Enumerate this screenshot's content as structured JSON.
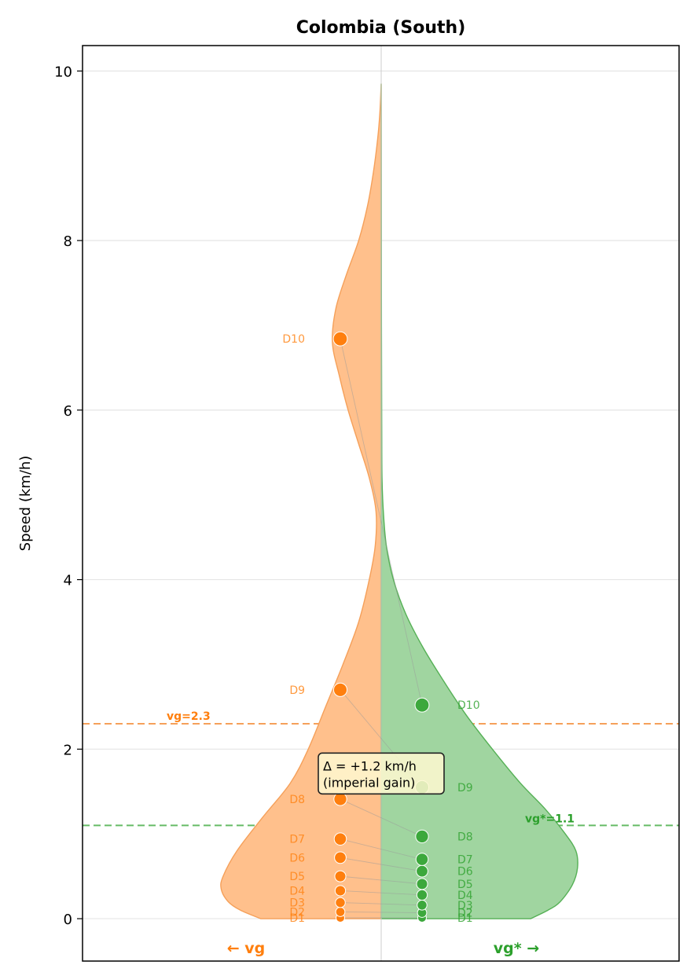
{
  "chart_data": {
    "type": "split-violin",
    "title": "Colombia (South)",
    "ylabel": "Speed (km/h)",
    "ylim": [
      -0.5,
      10.3
    ],
    "yticks": [
      0,
      2,
      4,
      6,
      8,
      10
    ],
    "grid": true,
    "left_side_label": "← vg",
    "right_side_label": "vg* →",
    "colors": {
      "vg": "#ff7f0e",
      "vg_fill": "#ffc08c",
      "vgstar": "#2ca02c",
      "vgstar_fill": "#a0d5a0",
      "vgstar_point": "#3ca83c"
    },
    "series": [
      {
        "name": "vg",
        "side": "left",
        "deciles": [
          {
            "label": "D1",
            "value": 0.01
          },
          {
            "label": "D2",
            "value": 0.08
          },
          {
            "label": "D3",
            "value": 0.19
          },
          {
            "label": "D4",
            "value": 0.33
          },
          {
            "label": "D5",
            "value": 0.5
          },
          {
            "label": "D6",
            "value": 0.72
          },
          {
            "label": "D7",
            "value": 0.94
          },
          {
            "label": "D8",
            "value": 1.41
          },
          {
            "label": "D9",
            "value": 2.7
          },
          {
            "label": "D10",
            "value": 6.84
          }
        ],
        "density": [
          [
            0.0,
            0.444
          ],
          [
            0.1,
            0.519
          ],
          [
            0.2,
            0.564
          ],
          [
            0.35,
            0.59
          ],
          [
            0.5,
            0.583
          ],
          [
            0.8,
            0.532
          ],
          [
            1.2,
            0.436
          ],
          [
            1.6,
            0.335
          ],
          [
            2.0,
            0.269
          ],
          [
            2.5,
            0.205
          ],
          [
            3.0,
            0.141
          ],
          [
            3.5,
            0.083
          ],
          [
            4.0,
            0.044
          ],
          [
            4.4,
            0.022
          ],
          [
            4.8,
            0.019
          ],
          [
            5.2,
            0.044
          ],
          [
            5.6,
            0.083
          ],
          [
            6.0,
            0.122
          ],
          [
            6.4,
            0.154
          ],
          [
            6.8,
            0.18
          ],
          [
            7.2,
            0.167
          ],
          [
            7.6,
            0.128
          ],
          [
            8.0,
            0.083
          ],
          [
            8.4,
            0.051
          ],
          [
            8.8,
            0.029
          ],
          [
            9.2,
            0.013
          ],
          [
            9.5,
            0.005
          ],
          [
            9.85,
            0.0
          ]
        ],
        "mean": 2.3,
        "mean_label": "vg=2.3"
      },
      {
        "name": "vg*",
        "side": "right",
        "deciles": [
          {
            "label": "D1",
            "value": 0.01
          },
          {
            "label": "D2",
            "value": 0.07
          },
          {
            "label": "D3",
            "value": 0.16
          },
          {
            "label": "D4",
            "value": 0.28
          },
          {
            "label": "D5",
            "value": 0.41
          },
          {
            "label": "D6",
            "value": 0.56
          },
          {
            "label": "D7",
            "value": 0.7
          },
          {
            "label": "D8",
            "value": 0.97
          },
          {
            "label": "D9",
            "value": 1.55
          },
          {
            "label": "D10",
            "value": 2.52
          }
        ],
        "density": [
          [
            0.0,
            0.551
          ],
          [
            0.1,
            0.615
          ],
          [
            0.2,
            0.66
          ],
          [
            0.4,
            0.705
          ],
          [
            0.6,
            0.724
          ],
          [
            0.8,
            0.718
          ],
          [
            1.0,
            0.679
          ],
          [
            1.3,
            0.603
          ],
          [
            1.6,
            0.513
          ],
          [
            2.0,
            0.41
          ],
          [
            2.4,
            0.314
          ],
          [
            2.8,
            0.231
          ],
          [
            3.2,
            0.154
          ],
          [
            3.6,
            0.09
          ],
          [
            4.0,
            0.045
          ],
          [
            4.4,
            0.019
          ],
          [
            4.8,
            0.008
          ],
          [
            5.2,
            0.003
          ],
          [
            5.8,
            0.002
          ],
          [
            7.0,
            0.001
          ],
          [
            9.85,
            0.0
          ]
        ],
        "mean": 1.1,
        "mean_label": "vg*=1.1"
      }
    ],
    "annotations": [
      {
        "text_line1": "Δ = +1.2 km/h",
        "text_line2": "(imperial gain)",
        "y": 1.75
      }
    ]
  }
}
